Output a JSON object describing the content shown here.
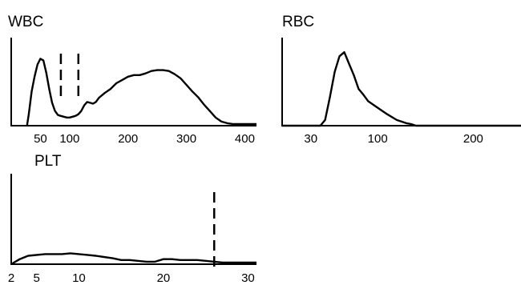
{
  "chart_data": [
    {
      "type": "line",
      "title": "WBC",
      "xlim": [
        0,
        420
      ],
      "ylim": [
        0,
        100
      ],
      "x_ticks": [
        {
          "value": 50,
          "label": "50"
        },
        {
          "value": 100,
          "label": "100"
        },
        {
          "value": 200,
          "label": "200"
        },
        {
          "value": 300,
          "label": "300"
        },
        {
          "value": 400,
          "label": "400"
        }
      ],
      "discriminators": [
        85,
        115
      ],
      "x": [
        27,
        30,
        35,
        40,
        45,
        50,
        55,
        60,
        65,
        70,
        75,
        80,
        85,
        90,
        95,
        100,
        105,
        110,
        115,
        120,
        125,
        130,
        135,
        140,
        145,
        150,
        160,
        170,
        180,
        190,
        200,
        210,
        220,
        230,
        240,
        250,
        260,
        270,
        280,
        290,
        300,
        310,
        320,
        330,
        340,
        350,
        360,
        370,
        380,
        390,
        400,
        410,
        420
      ],
      "values": [
        0,
        14,
        42,
        60,
        75,
        82,
        80,
        65,
        45,
        28,
        18,
        13,
        12,
        11,
        10,
        10,
        11,
        12,
        14,
        18,
        25,
        29,
        28,
        27,
        29,
        34,
        40,
        45,
        52,
        56,
        60,
        62,
        62,
        64,
        67,
        68,
        68,
        67,
        63,
        58,
        50,
        42,
        35,
        26,
        18,
        10,
        5,
        3,
        2,
        2,
        2,
        2,
        2
      ]
    },
    {
      "type": "line",
      "title": "RBC",
      "xlim": [
        0,
        250
      ],
      "ylim": [
        0,
        100
      ],
      "x_ticks": [
        {
          "value": 30,
          "label": "30"
        },
        {
          "value": 100,
          "label": "100"
        },
        {
          "value": 200,
          "label": "200"
        }
      ],
      "x": [
        0,
        40,
        45,
        50,
        55,
        60,
        65,
        70,
        75,
        80,
        85,
        90,
        100,
        110,
        120,
        130,
        135,
        140,
        250
      ],
      "values": [
        0,
        0,
        7,
        35,
        66,
        85,
        90,
        76,
        62,
        45,
        38,
        30,
        22,
        14,
        7,
        3,
        2,
        0,
        0
      ]
    },
    {
      "type": "line",
      "title": "PLT",
      "xlim": [
        2,
        31
      ],
      "ylim": [
        0,
        100
      ],
      "x_ticks": [
        {
          "value": 2,
          "label": "2"
        },
        {
          "value": 5,
          "label": "5"
        },
        {
          "value": 10,
          "label": "10"
        },
        {
          "value": 20,
          "label": "20"
        },
        {
          "value": 30,
          "label": "30"
        }
      ],
      "discriminators": [
        26
      ],
      "x": [
        2,
        3,
        4,
        6,
        8,
        9,
        10,
        11,
        12,
        14,
        15,
        16,
        18,
        19,
        20,
        21,
        22,
        24,
        26,
        27,
        29,
        31
      ],
      "values": [
        0,
        6,
        10,
        12,
        12,
        13,
        12,
        11,
        10,
        7,
        5,
        5,
        3,
        3,
        6,
        6,
        5,
        5,
        3,
        2,
        2,
        2
      ]
    }
  ]
}
